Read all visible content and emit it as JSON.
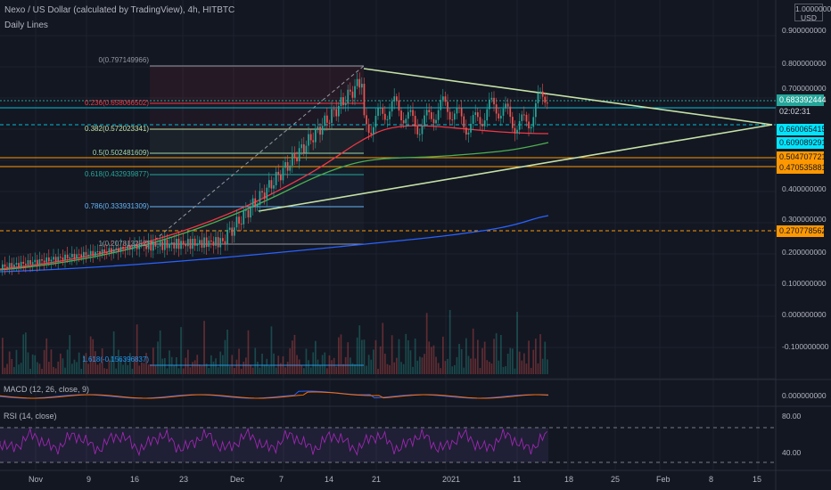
{
  "header": {
    "title": "Nexo / US Dollar (calculated by TradingView), 4h, HITBTC",
    "indicator": "Daily Lines",
    "currency_lines": [
      "1.000000000",
      "USD"
    ]
  },
  "fib_levels": [
    {
      "label": "0(0.797149966)",
      "color": "#9598a1"
    },
    {
      "label": "0.236(0.658066502)",
      "color": "#f23645"
    },
    {
      "label": "0.382(0.572023341)",
      "color": "#c5e1a5"
    },
    {
      "label": "0.5(0.502481609)",
      "color": "#a5d6a7"
    },
    {
      "label": "0.618(0.432939877)",
      "color": "#26a69a"
    },
    {
      "label": "0.786(0.333931309)",
      "color": "#64b5f6"
    },
    {
      "label": "1(0.207813252)",
      "color": "#9598a1"
    },
    {
      "label": "1.618(-0.156396837)",
      "color": "#2196f3"
    }
  ],
  "price_tags": [
    {
      "text": "0.683392444",
      "bg": "#26a69a",
      "fg": "#ffffff"
    },
    {
      "text": "02:02:31",
      "bg": "#131722",
      "fg": "#d1d4dc"
    },
    {
      "text": "0.660065415",
      "bg": "#00e5ff",
      "fg": "#131722"
    },
    {
      "text": "0.609089291",
      "bg": "#00e5ff",
      "fg": "#131722"
    },
    {
      "text": "0.504707721",
      "bg": "#ff9800",
      "fg": "#131722"
    },
    {
      "text": "0.470535881",
      "bg": "#ff9800",
      "fg": "#131722"
    },
    {
      "text": "0.270778562",
      "bg": "#ff9800",
      "fg": "#131722"
    }
  ],
  "y_axis_main": [
    "0.900000000",
    "0.800000000",
    "0.700000000",
    "0.400000000",
    "0.300000000",
    "0.200000000",
    "0.100000000",
    "0.000000000",
    "-0.100000000"
  ],
  "macd": {
    "title": "MACD (12, 26, close, 9)",
    "axis": "0.000000000"
  },
  "rsi": {
    "title": "RSI (14, close)",
    "axis": [
      "80.00",
      "40.00"
    ]
  },
  "x_axis": [
    "Nov",
    "9",
    "16",
    "23",
    "Dec",
    "7",
    "14",
    "21",
    "2021",
    "11",
    "18",
    "25",
    "Feb",
    "8",
    "15"
  ],
  "colors": {
    "background": "#131722",
    "up": "#26a69a",
    "down": "#ef5350",
    "triangle": "#c5e1a5",
    "rsi": "#9c27b0"
  }
}
